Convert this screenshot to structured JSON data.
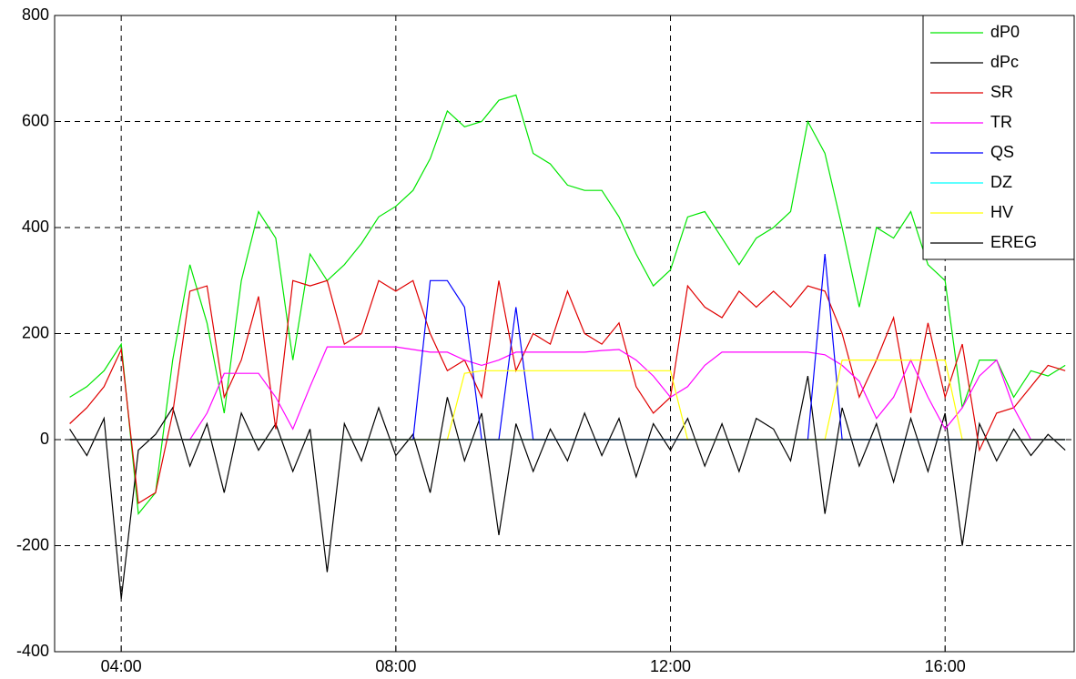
{
  "chart_data": {
    "type": "line",
    "x": [
      3.25,
      3.5,
      3.75,
      4.0,
      4.25,
      4.5,
      4.75,
      5.0,
      5.25,
      5.5,
      5.75,
      6.0,
      6.25,
      6.5,
      6.75,
      7.0,
      7.25,
      7.5,
      7.75,
      8.0,
      8.25,
      8.5,
      8.75,
      9.0,
      9.25,
      9.5,
      9.75,
      10.0,
      10.25,
      10.5,
      10.75,
      11.0,
      11.25,
      11.5,
      11.75,
      12.0,
      12.25,
      12.5,
      12.75,
      13.0,
      13.25,
      13.5,
      13.75,
      14.0,
      14.25,
      14.5,
      14.75,
      15.0,
      15.25,
      15.5,
      15.75,
      16.0,
      16.25,
      16.5,
      16.75,
      17.0,
      17.25,
      17.5,
      17.75
    ],
    "xlim": [
      3.03,
      17.88
    ],
    "xticks": [
      {
        "value": 4,
        "label": "04:00"
      },
      {
        "value": 8,
        "label": "08:00"
      },
      {
        "value": 12,
        "label": "12:00"
      },
      {
        "value": 16,
        "label": "16:00"
      }
    ],
    "ylim": [
      -400,
      800
    ],
    "yticks": [
      -400,
      -200,
      0,
      200,
      400,
      600,
      800
    ],
    "grid": true,
    "legend": "upper right",
    "series": [
      {
        "name": "dP0",
        "color": "#00e600",
        "values": [
          80,
          100,
          130,
          180,
          -140,
          -100,
          150,
          330,
          220,
          50,
          300,
          430,
          380,
          150,
          350,
          300,
          330,
          370,
          420,
          440,
          470,
          530,
          620,
          590,
          600,
          640,
          650,
          540,
          520,
          480,
          470,
          470,
          420,
          350,
          290,
          320,
          420,
          430,
          380,
          330,
          380,
          400,
          430,
          600,
          540,
          400,
          250,
          400,
          380,
          430,
          330,
          300,
          60,
          150,
          150,
          80,
          130,
          120,
          140
        ]
      },
      {
        "name": "dPc",
        "color": "#000000",
        "values": [
          20,
          -30,
          40,
          -300,
          -20,
          10,
          60,
          -50,
          30,
          -100,
          50,
          -20,
          30,
          -60,
          20,
          -250,
          30,
          -40,
          60,
          -30,
          10,
          -100,
          80,
          -40,
          50,
          -180,
          30,
          -60,
          20,
          -40,
          50,
          -30,
          40,
          -70,
          30,
          -20,
          40,
          -50,
          30,
          -60,
          40,
          20,
          -40,
          120,
          -140,
          60,
          -50,
          30,
          -80,
          40,
          -60,
          50,
          -200,
          30,
          -40,
          20,
          -30,
          10,
          -20
        ]
      },
      {
        "name": "SR",
        "color": "#e00000",
        "values": [
          30,
          60,
          100,
          170,
          -120,
          -100,
          50,
          280,
          290,
          80,
          150,
          270,
          20,
          300,
          290,
          300,
          180,
          200,
          300,
          280,
          300,
          200,
          130,
          150,
          80,
          300,
          130,
          200,
          180,
          280,
          200,
          180,
          220,
          100,
          50,
          80,
          290,
          250,
          230,
          280,
          250,
          280,
          250,
          290,
          280,
          200,
          80,
          150,
          230,
          50,
          220,
          80,
          180,
          -20,
          50,
          60,
          100,
          140,
          130
        ]
      },
      {
        "name": "TR",
        "color": "#ff00ff",
        "values": [
          0,
          0,
          0,
          0,
          0,
          0,
          0,
          0,
          50,
          125,
          125,
          125,
          80,
          20,
          100,
          175,
          175,
          175,
          175,
          175,
          170,
          165,
          165,
          150,
          140,
          150,
          165,
          165,
          165,
          165,
          165,
          168,
          170,
          150,
          120,
          80,
          100,
          140,
          165,
          165,
          165,
          165,
          165,
          165,
          160,
          140,
          110,
          40,
          80,
          150,
          80,
          20,
          60,
          120,
          150,
          60,
          0,
          0,
          0
        ]
      },
      {
        "name": "QS",
        "color": "#0000ff",
        "values": [
          0,
          0,
          0,
          0,
          0,
          0,
          0,
          0,
          0,
          0,
          0,
          0,
          0,
          0,
          0,
          0,
          0,
          0,
          0,
          0,
          0,
          300,
          300,
          250,
          0,
          0,
          250,
          0,
          0,
          0,
          0,
          0,
          0,
          0,
          0,
          0,
          0,
          0,
          0,
          0,
          0,
          0,
          0,
          0,
          350,
          0,
          0,
          0,
          0,
          0,
          0,
          0,
          0,
          0,
          0,
          0,
          0,
          0,
          0
        ]
      },
      {
        "name": "DZ",
        "color": "#00ffff",
        "values": [
          0,
          0,
          0,
          0,
          0,
          0,
          0,
          0,
          0,
          0,
          0,
          0,
          0,
          0,
          0,
          0,
          0,
          0,
          0,
          0,
          0,
          0,
          0,
          0,
          0,
          0,
          0,
          0,
          0,
          0,
          0,
          0,
          0,
          0,
          0,
          0,
          0,
          0,
          0,
          0,
          0,
          0,
          0,
          0,
          0,
          0,
          0,
          0,
          0,
          0,
          0,
          0,
          0,
          0,
          0,
          0,
          0,
          0,
          0
        ]
      },
      {
        "name": "HV",
        "color": "#ffff00",
        "values": [
          0,
          0,
          0,
          0,
          0,
          0,
          0,
          0,
          0,
          0,
          0,
          0,
          0,
          0,
          0,
          0,
          0,
          0,
          0,
          0,
          0,
          0,
          0,
          125,
          130,
          130,
          130,
          130,
          130,
          130,
          130,
          130,
          130,
          130,
          130,
          130,
          0,
          0,
          0,
          0,
          0,
          0,
          0,
          0,
          0,
          150,
          150,
          150,
          150,
          150,
          150,
          150,
          0,
          0,
          0,
          0,
          0,
          0,
          0
        ]
      },
      {
        "name": "EREG",
        "color": "#000000",
        "values": [
          0,
          0,
          0,
          0,
          0,
          0,
          0,
          0,
          0,
          0,
          0,
          0,
          0,
          0,
          0,
          0,
          0,
          0,
          0,
          0,
          0,
          0,
          0,
          0,
          0,
          0,
          0,
          0,
          0,
          0,
          0,
          0,
          0,
          0,
          0,
          0,
          0,
          0,
          0,
          0,
          0,
          0,
          0,
          0,
          0,
          0,
          0,
          0,
          0,
          0,
          0,
          0,
          0,
          0,
          0,
          0,
          0,
          0,
          0
        ]
      }
    ]
  }
}
